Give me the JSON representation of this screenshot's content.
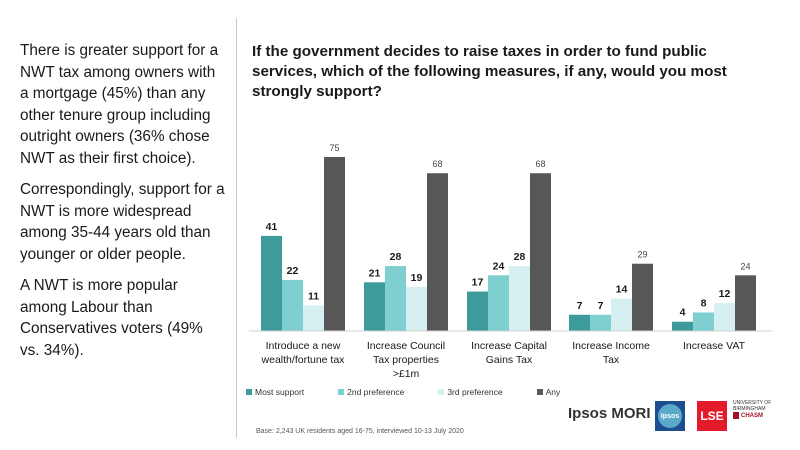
{
  "left_text": {
    "p1": "There is greater support for a NWT tax among owners with a mortgage (45%) than any other tenure group including outright owners (36% chose NWT as their first choice).",
    "p2": "Correspondingly, support for a NWT is more widespread among 35-44 years old than younger or older people.",
    "p3": "A NWT is more popular among Labour than Conservatives voters (49% vs. 34%)."
  },
  "question": "If the government decides to raise taxes in order to fund public services, which of the following measures, if any, would you most strongly support?",
  "base_note": "Base: 2,243 UK residents aged 16-75, interviewed 10-13 July 2020",
  "logos": {
    "ipsos_mori": "Ipsos MORI",
    "ipsos": "Ipsos",
    "lse": "LSE",
    "university": "UNIVERSITY OF BIRMINGHAM",
    "chasm": "CHASM"
  },
  "chart_data": {
    "type": "bar",
    "categories": [
      [
        "Introduce  a new",
        "wealth/fortune  tax"
      ],
      [
        "Increase Council",
        "Tax properties",
        ">£1m"
      ],
      [
        "Increase Capital",
        "Gains Tax"
      ],
      [
        "Increase Income",
        "Tax"
      ],
      [
        "Increase VAT"
      ]
    ],
    "series": [
      {
        "name": "Most support",
        "color": "#3d9b9b",
        "values": [
          41,
          21,
          17,
          7,
          4
        ]
      },
      {
        "name": "2nd preference",
        "color": "#7fcfd1",
        "values": [
          22,
          28,
          24,
          7,
          8
        ]
      },
      {
        "name": "3rd preference",
        "color": "#d6eff0",
        "values": [
          11,
          19,
          28,
          14,
          12
        ]
      },
      {
        "name": "Any",
        "color": "#575757",
        "values": [
          75,
          68,
          68,
          29,
          24
        ]
      }
    ],
    "ylim": [
      0,
      75
    ],
    "grid": false,
    "legend_position": "bottom-left"
  }
}
